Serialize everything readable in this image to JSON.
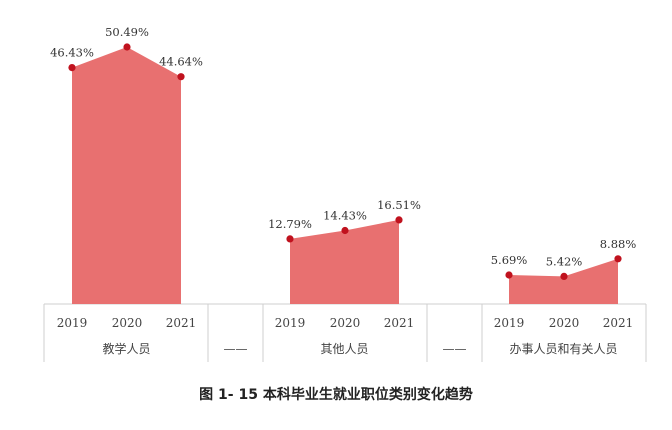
{
  "chart_data": {
    "type": "area",
    "groups": [
      {
        "name": "教学人员",
        "x": [
          "2019",
          "2020",
          "2021"
        ],
        "values": [
          46.43,
          50.49,
          44.64
        ],
        "labels": [
          "46.43%",
          "50.49%",
          "44.64%"
        ]
      },
      {
        "name": "其他人员",
        "x": [
          "2019",
          "2020",
          "2021"
        ],
        "values": [
          12.79,
          14.43,
          16.51
        ],
        "labels": [
          "12.79%",
          "14.43%",
          "16.51%"
        ]
      },
      {
        "name": "办事人员和有关人员",
        "x": [
          "2019",
          "2020",
          "2021"
        ],
        "values": [
          5.69,
          5.42,
          8.88
        ],
        "labels": [
          "5.69%",
          "5.42%",
          "8.88%"
        ]
      }
    ],
    "separator": "——",
    "ylim": [
      0,
      55
    ],
    "fill_color": "#e87070",
    "marker_color": "#c0121e",
    "grid": false
  },
  "caption": "图 1- 15  本科毕业生就业职位类别变化趋势"
}
